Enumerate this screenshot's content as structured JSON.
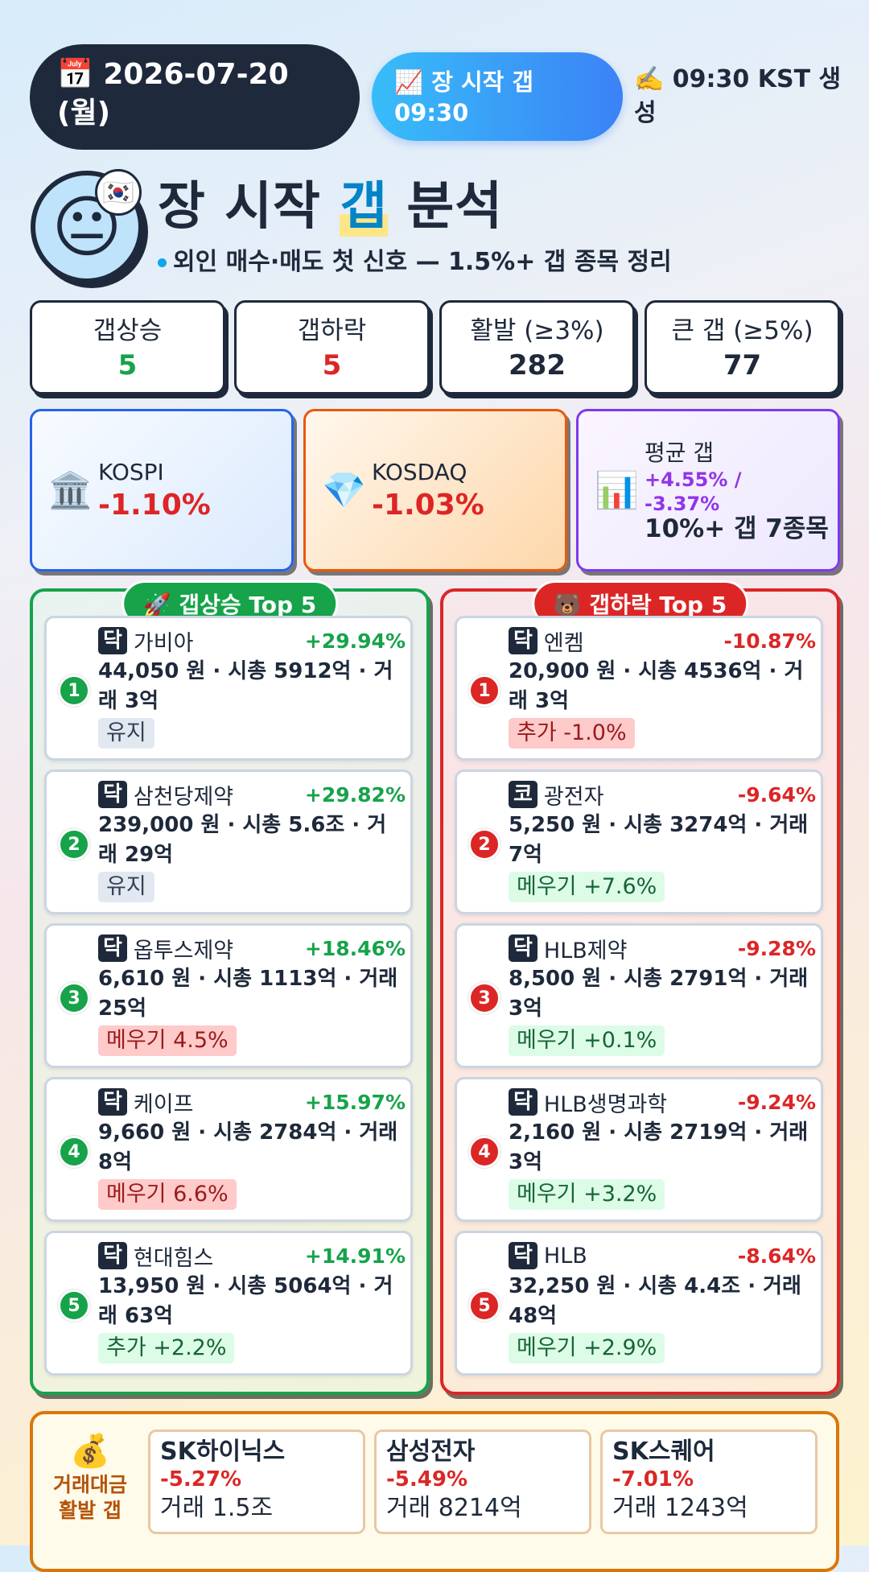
{
  "header": {
    "date": "📅 2026-07-20 (월)",
    "session": "📈 장 시작 갭 09:30",
    "generated": "✍️ 09:30 KST 생성"
  },
  "hero": {
    "face": "😐",
    "flag": "🇰🇷",
    "title_pre": "장 시작 ",
    "title_highlight": "갭",
    "title_post": " 분석",
    "subtitle": "외인 매수·매도 첫 신호 — 1.5%+ 갭 종목 정리"
  },
  "stats": [
    {
      "label": "갭상승",
      "value": 5
    },
    {
      "label": "갭하락",
      "value": 5
    },
    {
      "label": "활발 (≥3%)",
      "value": 282
    },
    {
      "label": "큰 갭 (≥5%)",
      "value": 77
    }
  ],
  "indices": [
    {
      "icon": "🏛️",
      "name": "KOSPI",
      "change": "-1.10%"
    },
    {
      "icon": "💎",
      "name": "KOSDAQ",
      "change": "-1.03%"
    }
  ],
  "average": {
    "icon": "📊",
    "label": "평균 갭",
    "value": "+4.55% / -3.37%",
    "note": "10%+ 갭 7종목"
  },
  "panels": [
    {
      "title": "🚀 갭상승 Top 5",
      "items": [
        {
          "rank": 1,
          "market": "닥",
          "name": "가비아",
          "change": "+29.94%",
          "detail": "44,050 원 · 시총 5912억 · 거래 3억",
          "tag": "유지"
        },
        {
          "rank": 2,
          "market": "닥",
          "name": "삼천당제약",
          "change": "+29.82%",
          "detail": "239,000 원 · 시총 5.6조 · 거래 29억",
          "tag": "유지"
        },
        {
          "rank": 3,
          "market": "닥",
          "name": "옵투스제약",
          "change": "+18.46%",
          "detail": "6,610 원 · 시총 1113억 · 거래 25억",
          "tag": "메우기 4.5%"
        },
        {
          "rank": 4,
          "market": "닥",
          "name": "케이프",
          "change": "+15.97%",
          "detail": "9,660 원 · 시총 2784억 · 거래 8억",
          "tag": "메우기 6.6%"
        },
        {
          "rank": 5,
          "market": "닥",
          "name": "현대힘스",
          "change": "+14.91%",
          "detail": "13,950 원 · 시총 5064억 · 거래 63억",
          "tag": "추가 +2.2%"
        }
      ]
    },
    {
      "title": "🐻 갭하락 Top 5",
      "items": [
        {
          "rank": 1,
          "market": "닥",
          "name": "엔켐",
          "change": "-10.87%",
          "detail": "20,900 원 · 시총 4536억 · 거래 3억",
          "tag": "추가 -1.0%"
        },
        {
          "rank": 2,
          "market": "코",
          "name": "광전자",
          "change": "-9.64%",
          "detail": "5,250 원 · 시총 3274억 · 거래 7억",
          "tag": "메우기 +7.6%"
        },
        {
          "rank": 3,
          "market": "닥",
          "name": "HLB제약",
          "change": "-9.28%",
          "detail": "8,500 원 · 시총 2791억 · 거래 3억",
          "tag": "메우기 +0.1%"
        },
        {
          "rank": 4,
          "market": "닥",
          "name": "HLB생명과학",
          "change": "-9.24%",
          "detail": "2,160 원 · 시총 2719억 · 거래 3억",
          "tag": "메우기 +3.2%"
        },
        {
          "rank": 5,
          "market": "닥",
          "name": "HLB",
          "change": "-8.64%",
          "detail": "32,250 원 · 시총 4.4조 · 거래 48억",
          "tag": "메우기 +2.9%"
        }
      ]
    }
  ],
  "active": {
    "icon": "💰",
    "label": "거래대금 활발 갭",
    "items": [
      {
        "name": "SK하이닉스",
        "change": "-5.27%",
        "volume": "거래 1.5조"
      },
      {
        "name": "삼성전자",
        "change": "-5.49%",
        "volume": "거래 8214억"
      },
      {
        "name": "SK스퀘어",
        "change": "-7.01%",
        "volume": "거래 1243억"
      }
    ]
  }
}
